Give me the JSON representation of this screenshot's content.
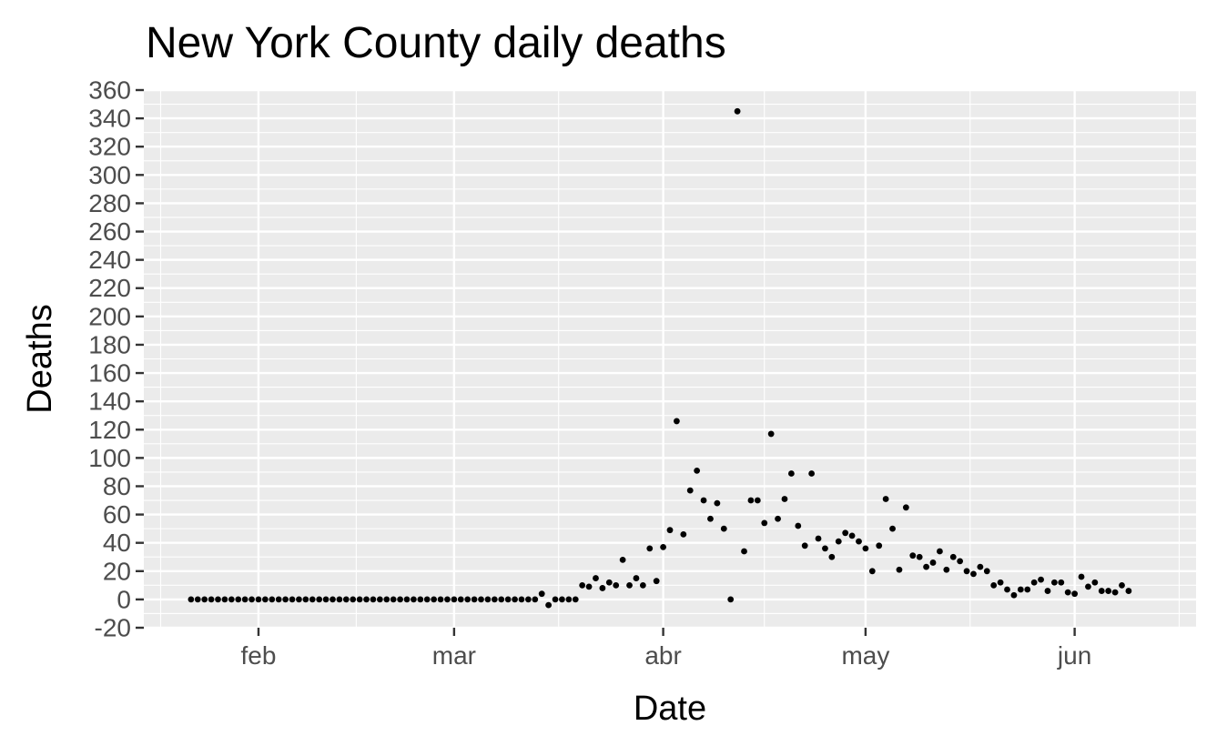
{
  "chart_data": {
    "type": "scatter",
    "title": "New York County daily deaths",
    "xlabel": "Date",
    "ylabel": "Deaths",
    "x_ticks": [
      "feb",
      "mar",
      "abr",
      "may",
      "jun"
    ],
    "y_ticks": [
      "-20",
      "0",
      "20",
      "40",
      "60",
      "80",
      "100",
      "120",
      "140",
      "160",
      "180",
      "200",
      "220",
      "240",
      "260",
      "280",
      "300",
      "320",
      "340",
      "360"
    ],
    "xlim": [
      "2020-01-15",
      "2020-06-19"
    ],
    "ylim": [
      -20,
      360
    ],
    "grid": true,
    "background": "#ebebeb",
    "point_color": "#000000",
    "points": [
      {
        "x": "2020-01-22",
        "y": 0
      },
      {
        "x": "2020-01-23",
        "y": 0
      },
      {
        "x": "2020-01-24",
        "y": 0
      },
      {
        "x": "2020-01-25",
        "y": 0
      },
      {
        "x": "2020-01-26",
        "y": 0
      },
      {
        "x": "2020-01-27",
        "y": 0
      },
      {
        "x": "2020-01-28",
        "y": 0
      },
      {
        "x": "2020-01-29",
        "y": 0
      },
      {
        "x": "2020-01-30",
        "y": 0
      },
      {
        "x": "2020-01-31",
        "y": 0
      },
      {
        "x": "2020-02-01",
        "y": 0
      },
      {
        "x": "2020-02-02",
        "y": 0
      },
      {
        "x": "2020-02-03",
        "y": 0
      },
      {
        "x": "2020-02-04",
        "y": 0
      },
      {
        "x": "2020-02-05",
        "y": 0
      },
      {
        "x": "2020-02-06",
        "y": 0
      },
      {
        "x": "2020-02-07",
        "y": 0
      },
      {
        "x": "2020-02-08",
        "y": 0
      },
      {
        "x": "2020-02-09",
        "y": 0
      },
      {
        "x": "2020-02-10",
        "y": 0
      },
      {
        "x": "2020-02-11",
        "y": 0
      },
      {
        "x": "2020-02-12",
        "y": 0
      },
      {
        "x": "2020-02-13",
        "y": 0
      },
      {
        "x": "2020-02-14",
        "y": 0
      },
      {
        "x": "2020-02-15",
        "y": 0
      },
      {
        "x": "2020-02-16",
        "y": 0
      },
      {
        "x": "2020-02-17",
        "y": 0
      },
      {
        "x": "2020-02-18",
        "y": 0
      },
      {
        "x": "2020-02-19",
        "y": 0
      },
      {
        "x": "2020-02-20",
        "y": 0
      },
      {
        "x": "2020-02-21",
        "y": 0
      },
      {
        "x": "2020-02-22",
        "y": 0
      },
      {
        "x": "2020-02-23",
        "y": 0
      },
      {
        "x": "2020-02-24",
        "y": 0
      },
      {
        "x": "2020-02-25",
        "y": 0
      },
      {
        "x": "2020-02-26",
        "y": 0
      },
      {
        "x": "2020-02-27",
        "y": 0
      },
      {
        "x": "2020-02-28",
        "y": 0
      },
      {
        "x": "2020-02-29",
        "y": 0
      },
      {
        "x": "2020-03-01",
        "y": 0
      },
      {
        "x": "2020-03-02",
        "y": 0
      },
      {
        "x": "2020-03-03",
        "y": 0
      },
      {
        "x": "2020-03-04",
        "y": 0
      },
      {
        "x": "2020-03-05",
        "y": 0
      },
      {
        "x": "2020-03-06",
        "y": 0
      },
      {
        "x": "2020-03-07",
        "y": 0
      },
      {
        "x": "2020-03-08",
        "y": 0
      },
      {
        "x": "2020-03-09",
        "y": 0
      },
      {
        "x": "2020-03-10",
        "y": 0
      },
      {
        "x": "2020-03-11",
        "y": 0
      },
      {
        "x": "2020-03-12",
        "y": 0
      },
      {
        "x": "2020-03-13",
        "y": 0
      },
      {
        "x": "2020-03-14",
        "y": 4
      },
      {
        "x": "2020-03-15",
        "y": -4
      },
      {
        "x": "2020-03-16",
        "y": 0
      },
      {
        "x": "2020-03-17",
        "y": 0
      },
      {
        "x": "2020-03-18",
        "y": 0
      },
      {
        "x": "2020-03-19",
        "y": 0
      },
      {
        "x": "2020-03-20",
        "y": 10
      },
      {
        "x": "2020-03-21",
        "y": 9
      },
      {
        "x": "2020-03-22",
        "y": 15
      },
      {
        "x": "2020-03-23",
        "y": 8
      },
      {
        "x": "2020-03-24",
        "y": 12
      },
      {
        "x": "2020-03-25",
        "y": 10
      },
      {
        "x": "2020-03-26",
        "y": 28
      },
      {
        "x": "2020-03-27",
        "y": 10
      },
      {
        "x": "2020-03-28",
        "y": 15
      },
      {
        "x": "2020-03-29",
        "y": 10
      },
      {
        "x": "2020-03-30",
        "y": 36
      },
      {
        "x": "2020-03-31",
        "y": 13
      },
      {
        "x": "2020-04-01",
        "y": 37
      },
      {
        "x": "2020-04-02",
        "y": 49
      },
      {
        "x": "2020-04-03",
        "y": 126
      },
      {
        "x": "2020-04-04",
        "y": 46
      },
      {
        "x": "2020-04-05",
        "y": 77
      },
      {
        "x": "2020-04-06",
        "y": 91
      },
      {
        "x": "2020-04-07",
        "y": 70
      },
      {
        "x": "2020-04-08",
        "y": 57
      },
      {
        "x": "2020-04-09",
        "y": 68
      },
      {
        "x": "2020-04-10",
        "y": 50
      },
      {
        "x": "2020-04-11",
        "y": 0
      },
      {
        "x": "2020-04-12",
        "y": 345
      },
      {
        "x": "2020-04-13",
        "y": 34
      },
      {
        "x": "2020-04-14",
        "y": 70
      },
      {
        "x": "2020-04-15",
        "y": 70
      },
      {
        "x": "2020-04-16",
        "y": 54
      },
      {
        "x": "2020-04-17",
        "y": 117
      },
      {
        "x": "2020-04-18",
        "y": 57
      },
      {
        "x": "2020-04-19",
        "y": 71
      },
      {
        "x": "2020-04-20",
        "y": 89
      },
      {
        "x": "2020-04-21",
        "y": 52
      },
      {
        "x": "2020-04-22",
        "y": 38
      },
      {
        "x": "2020-04-23",
        "y": 89
      },
      {
        "x": "2020-04-24",
        "y": 43
      },
      {
        "x": "2020-04-25",
        "y": 36
      },
      {
        "x": "2020-04-26",
        "y": 30
      },
      {
        "x": "2020-04-27",
        "y": 41
      },
      {
        "x": "2020-04-28",
        "y": 47
      },
      {
        "x": "2020-04-29",
        "y": 45
      },
      {
        "x": "2020-04-30",
        "y": 41
      },
      {
        "x": "2020-05-01",
        "y": 36
      },
      {
        "x": "2020-05-02",
        "y": 20
      },
      {
        "x": "2020-05-03",
        "y": 38
      },
      {
        "x": "2020-05-04",
        "y": 71
      },
      {
        "x": "2020-05-05",
        "y": 50
      },
      {
        "x": "2020-05-06",
        "y": 21
      },
      {
        "x": "2020-05-07",
        "y": 65
      },
      {
        "x": "2020-05-08",
        "y": 31
      },
      {
        "x": "2020-05-09",
        "y": 30
      },
      {
        "x": "2020-05-10",
        "y": 23
      },
      {
        "x": "2020-05-11",
        "y": 26
      },
      {
        "x": "2020-05-12",
        "y": 34
      },
      {
        "x": "2020-05-13",
        "y": 21
      },
      {
        "x": "2020-05-14",
        "y": 30
      },
      {
        "x": "2020-05-15",
        "y": 27
      },
      {
        "x": "2020-05-16",
        "y": 20
      },
      {
        "x": "2020-05-17",
        "y": 18
      },
      {
        "x": "2020-05-18",
        "y": 23
      },
      {
        "x": "2020-05-19",
        "y": 20
      },
      {
        "x": "2020-05-20",
        "y": 10
      },
      {
        "x": "2020-05-21",
        "y": 12
      },
      {
        "x": "2020-05-22",
        "y": 7
      },
      {
        "x": "2020-05-23",
        "y": 3
      },
      {
        "x": "2020-05-24",
        "y": 7
      },
      {
        "x": "2020-05-25",
        "y": 7
      },
      {
        "x": "2020-05-26",
        "y": 12
      },
      {
        "x": "2020-05-27",
        "y": 14
      },
      {
        "x": "2020-05-28",
        "y": 6
      },
      {
        "x": "2020-05-29",
        "y": 12
      },
      {
        "x": "2020-05-30",
        "y": 12
      },
      {
        "x": "2020-05-31",
        "y": 5
      },
      {
        "x": "2020-06-01",
        "y": 4
      },
      {
        "x": "2020-06-02",
        "y": 16
      },
      {
        "x": "2020-06-03",
        "y": 9
      },
      {
        "x": "2020-06-04",
        "y": 12
      },
      {
        "x": "2020-06-05",
        "y": 6
      },
      {
        "x": "2020-06-06",
        "y": 6
      },
      {
        "x": "2020-06-07",
        "y": 5
      },
      {
        "x": "2020-06-08",
        "y": 10
      },
      {
        "x": "2020-06-09",
        "y": 6
      }
    ]
  }
}
